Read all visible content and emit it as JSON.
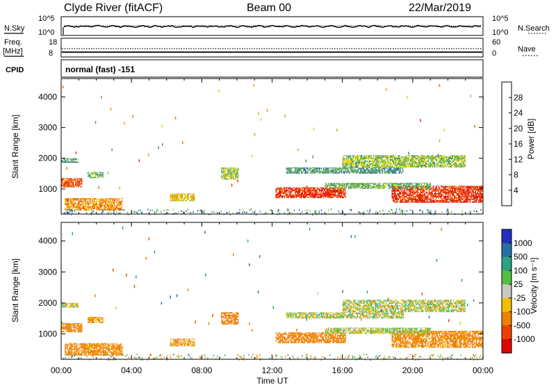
{
  "header": {
    "station": "Clyde River (fitACF)",
    "beam": "Beam 00",
    "date": "22/Mar/2019"
  },
  "strip1": {
    "left_label": "N.Sky",
    "right_label": "N.Search",
    "left_ticks": [
      "10^5",
      "10^0"
    ],
    "right_ticks": [
      "10^5",
      "10^0"
    ]
  },
  "strip2": {
    "left_label_line1": "Freq.",
    "left_label_line2": "[MHz]",
    "right_label": "Nave",
    "left_ticks": [
      "18",
      "8"
    ],
    "right_ticks": [
      "60",
      "0"
    ]
  },
  "cpid": {
    "label": "CPID",
    "mode": "normal (fast) -151"
  },
  "chart_data": [
    {
      "type": "heatmap",
      "quantity": "power",
      "ylabel": "Slant Range [km]",
      "ylim": [
        180,
        4600
      ],
      "yticks": [
        1000,
        2000,
        3000,
        4000
      ],
      "xlabel": "Time UT",
      "xlim_hours": [
        0,
        24
      ],
      "xtick_labels": [
        "00:00",
        "04:00",
        "08:00",
        "12:00",
        "16:00",
        "20:00",
        "00:00"
      ],
      "colorbar": {
        "label": "Power [dB]",
        "tick_values": [
          4,
          8,
          12,
          16,
          20,
          24,
          28
        ],
        "range": [
          0,
          32
        ],
        "colors": [
          "#0000ff",
          "#2050b8",
          "#3c8a8a",
          "#4aa060",
          "#90c830",
          "#f0d000",
          "#f0a000",
          "#f07000",
          "#f03000",
          "#e00000"
        ]
      },
      "bands": [
        {
          "t0": 0.0,
          "t1": 1.2,
          "r0": 1050,
          "r1": 1350,
          "level": 26
        },
        {
          "t0": 0.0,
          "t1": 1.0,
          "r0": 1850,
          "r1": 2000,
          "level": 10
        },
        {
          "t0": 0.2,
          "t1": 3.5,
          "r0": 300,
          "r1": 700,
          "level": 22
        },
        {
          "t0": 1.5,
          "t1": 2.4,
          "r0": 1350,
          "r1": 1550,
          "level": 12
        },
        {
          "t0": 6.2,
          "t1": 7.6,
          "r0": 600,
          "r1": 850,
          "level": 18
        },
        {
          "t0": 9.1,
          "t1": 10.1,
          "r0": 1300,
          "r1": 1700,
          "level": 14
        },
        {
          "t0": 12.2,
          "t1": 16.2,
          "r0": 700,
          "r1": 1050,
          "level": 28
        },
        {
          "t0": 12.8,
          "t1": 19.5,
          "r0": 1500,
          "r1": 1700,
          "level": 10
        },
        {
          "t0": 16.0,
          "t1": 23.0,
          "r0": 1700,
          "r1": 2100,
          "level": 14
        },
        {
          "t0": 18.8,
          "t1": 24.0,
          "r0": 550,
          "r1": 1100,
          "level": 28
        },
        {
          "t0": 15.0,
          "t1": 21.0,
          "r0": 1000,
          "r1": 1200,
          "level": 12
        }
      ]
    },
    {
      "type": "heatmap",
      "quantity": "velocity",
      "ylabel": "Slant Range [km]",
      "ylim": [
        180,
        4600
      ],
      "yticks": [
        1000,
        2000,
        3000,
        4000
      ],
      "xlabel": "Time UT",
      "xlim_hours": [
        0,
        24
      ],
      "xtick_labels": [
        "00:00",
        "04:00",
        "08:00",
        "12:00",
        "16:00",
        "20:00",
        "00:00"
      ],
      "colorbar": {
        "label": "Velocity [m s⁻¹]",
        "tick_labels": [
          "1000",
          "500",
          "100",
          "25",
          "-25",
          "-100",
          "-500",
          "-1000"
        ],
        "colors": [
          "#2030c0",
          "#2870a0",
          "#30a080",
          "#50c040",
          "#c8c8c0",
          "#f0c000",
          "#f08000",
          "#f04000",
          "#e00000"
        ]
      },
      "bands": [
        {
          "t0": 0.0,
          "t1": 1.2,
          "r0": 1050,
          "r1": 1350,
          "level": -300
        },
        {
          "t0": 0.0,
          "t1": 1.0,
          "r0": 1850,
          "r1": 2000,
          "level": 0
        },
        {
          "t0": 0.2,
          "t1": 3.5,
          "r0": 300,
          "r1": 700,
          "level": -200
        },
        {
          "t0": 1.5,
          "t1": 2.4,
          "r0": 1350,
          "r1": 1550,
          "level": -150
        },
        {
          "t0": 6.2,
          "t1": 7.6,
          "r0": 600,
          "r1": 850,
          "level": -100
        },
        {
          "t0": 9.1,
          "t1": 10.1,
          "r0": 1300,
          "r1": 1700,
          "level": -400
        },
        {
          "t0": 12.2,
          "t1": 16.2,
          "r0": 700,
          "r1": 1050,
          "level": -300
        },
        {
          "t0": 12.8,
          "t1": 19.5,
          "r0": 1500,
          "r1": 1700,
          "level": 0
        },
        {
          "t0": 16.0,
          "t1": 23.0,
          "r0": 1700,
          "r1": 2100,
          "level": 0
        },
        {
          "t0": 18.8,
          "t1": 24.0,
          "r0": 550,
          "r1": 1100,
          "level": -200
        },
        {
          "t0": 15.0,
          "t1": 21.0,
          "r0": 1000,
          "r1": 1200,
          "level": 10
        }
      ]
    }
  ]
}
